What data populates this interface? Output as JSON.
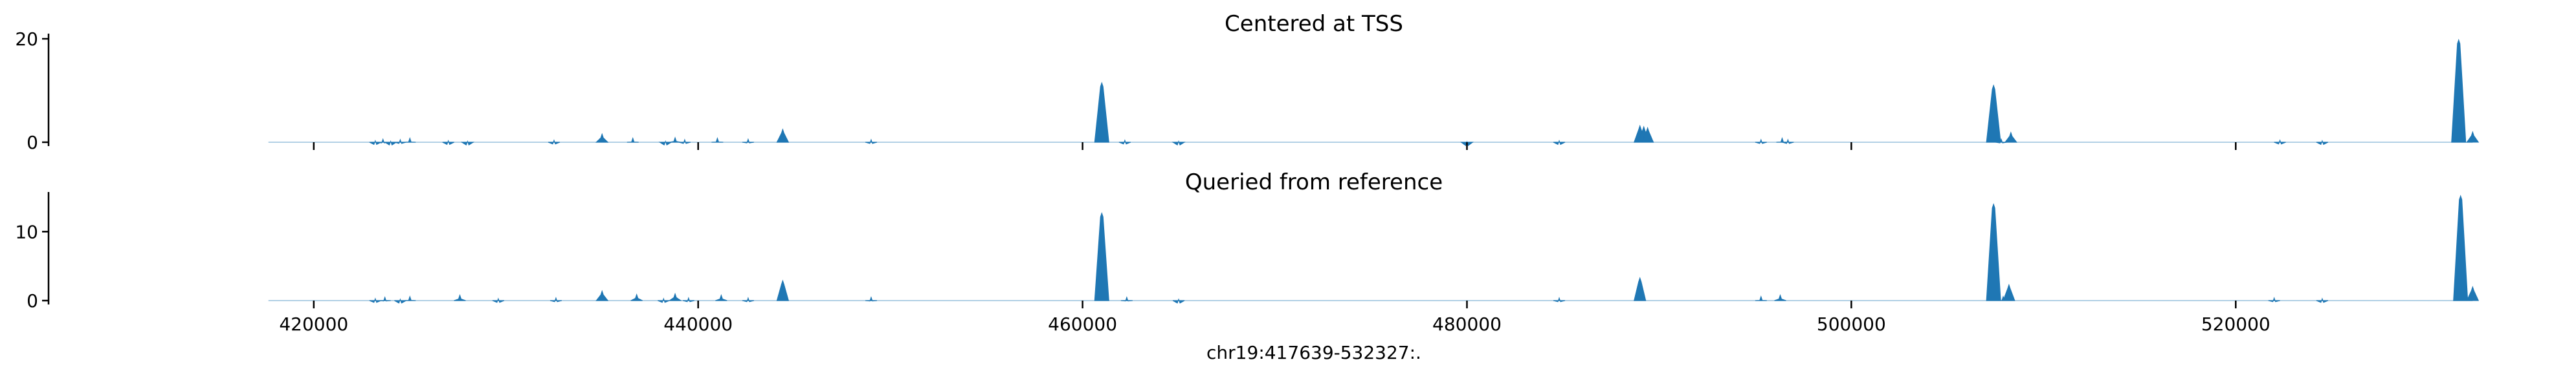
{
  "chart_data": {
    "type": "area",
    "xlabel": "chr19:417639-532327:.",
    "xlim": [
      417639,
      532327
    ],
    "xticks": [
      420000,
      440000,
      460000,
      480000,
      500000,
      520000
    ],
    "xtick_labels": [
      "420000",
      "440000",
      "460000",
      "480000",
      "500000",
      "520000"
    ],
    "color": "#1f77b4",
    "panels": [
      {
        "title": "Centered at TSS",
        "ylim": [
          0,
          20
        ],
        "yticks": [
          0,
          20
        ],
        "ytick_labels": [
          "0",
          "20"
        ],
        "x": [
          423200,
          423600,
          424000,
          424500,
          425000,
          427000,
          428000,
          432500,
          435000,
          436600,
          438300,
          438800,
          439300,
          441000,
          442600,
          444400,
          449000,
          461000,
          462200,
          465000,
          480000,
          484800,
          489000,
          489200,
          489400,
          495300,
          496400,
          496700,
          507400,
          507800,
          508300,
          522300,
          524500,
          531600,
          532327
        ],
        "y": [
          0.3,
          0.6,
          0.2,
          0.5,
          0.8,
          0.3,
          0.2,
          0.4,
          1.6,
          0.8,
          0.2,
          0.9,
          0.5,
          0.8,
          0.6,
          2.5,
          0.5,
          11.5,
          0.4,
          0.2,
          0.1,
          0.3,
          3.2,
          3.0,
          2.8,
          0.5,
          0.8,
          0.5,
          11.0,
          0.6,
          1.9,
          0.4,
          0.3,
          19.8,
          2.0
        ]
      },
      {
        "title": "Queried from reference",
        "ylim": [
          0,
          15
        ],
        "yticks": [
          0,
          10
        ],
        "ytick_labels": [
          "0",
          "10"
        ],
        "x": [
          423200,
          423700,
          424500,
          425000,
          427600,
          429600,
          432600,
          435000,
          436800,
          438200,
          438800,
          439500,
          441200,
          442600,
          444400,
          449000,
          461000,
          462300,
          465000,
          484800,
          489000,
          495300,
          496300,
          507400,
          507900,
          508200,
          522000,
          524500,
          531700,
          532327
        ],
        "y": [
          0.3,
          0.5,
          0.2,
          0.6,
          0.8,
          0.3,
          0.4,
          1.4,
          0.9,
          0.3,
          1.0,
          0.4,
          0.8,
          0.4,
          2.9,
          0.5,
          12.7,
          0.5,
          0.2,
          0.4,
          3.3,
          0.6,
          0.8,
          14.0,
          0.6,
          2.3,
          0.4,
          0.3,
          15.2,
          2.0
        ]
      }
    ]
  }
}
